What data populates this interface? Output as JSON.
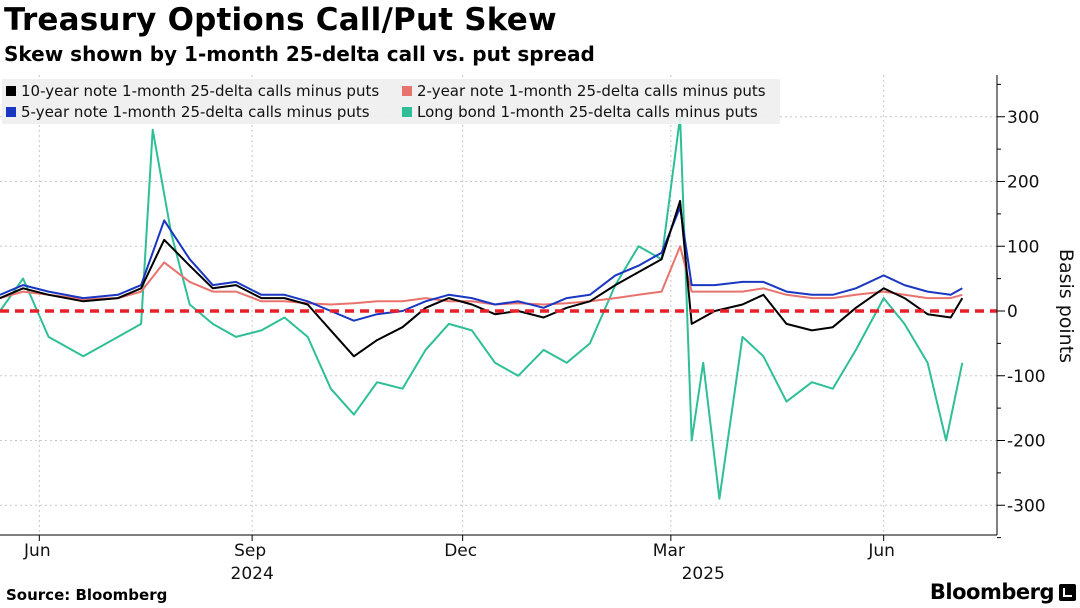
{
  "header": {
    "title": "Treasury Options Call/Put Skew",
    "subtitle": "Skew shown by 1-month 25-delta call vs. put spread"
  },
  "footer": {
    "source": "Source: Bloomberg",
    "brand": "Bloomberg"
  },
  "chart_data": {
    "type": "line",
    "ylabel": "Basis points",
    "ylim": [
      -350,
      370
    ],
    "yticks": [
      300,
      200,
      100,
      0,
      -100,
      -200,
      -300
    ],
    "ytick_labels": [
      "300",
      "200",
      "100",
      "0",
      "-100",
      "-200",
      "-300"
    ],
    "xlim": [
      "2024-05-15",
      "2025-07-20"
    ],
    "xticks": [
      {
        "label": "Jun",
        "date": "2024-06-01"
      },
      {
        "label": "Sep",
        "date": "2024-09-01"
      },
      {
        "label": "Dec",
        "date": "2024-12-01"
      },
      {
        "label": "Mar",
        "date": "2025-03-01"
      },
      {
        "label": "Jun",
        "date": "2025-06-01"
      }
    ],
    "year_labels": [
      {
        "label": "2024",
        "date": "2024-09-01"
      },
      {
        "label": "2025",
        "date": "2025-03-15"
      }
    ],
    "grid": true,
    "legend_position": "top-left",
    "reference_line": {
      "y": 0,
      "color": "#e8202a",
      "style": "dashed"
    },
    "series": [
      {
        "name": "10-year note 1-month 25-delta calls minus puts",
        "color": "#000000",
        "points": [
          [
            "2024-05-15",
            20
          ],
          [
            "2024-05-25",
            35
          ],
          [
            "2024-06-05",
            25
          ],
          [
            "2024-06-20",
            15
          ],
          [
            "2024-07-05",
            20
          ],
          [
            "2024-07-15",
            35
          ],
          [
            "2024-07-25",
            110
          ],
          [
            "2024-08-05",
            70
          ],
          [
            "2024-08-15",
            35
          ],
          [
            "2024-08-25",
            40
          ],
          [
            "2024-09-05",
            20
          ],
          [
            "2024-09-15",
            20
          ],
          [
            "2024-09-25",
            10
          ],
          [
            "2024-10-05",
            -30
          ],
          [
            "2024-10-15",
            -70
          ],
          [
            "2024-10-25",
            -45
          ],
          [
            "2024-11-05",
            -25
          ],
          [
            "2024-11-15",
            5
          ],
          [
            "2024-11-25",
            20
          ],
          [
            "2024-12-05",
            10
          ],
          [
            "2024-12-15",
            -5
          ],
          [
            "2024-12-25",
            0
          ],
          [
            "2025-01-05",
            -10
          ],
          [
            "2025-01-15",
            5
          ],
          [
            "2025-01-25",
            15
          ],
          [
            "2025-02-05",
            40
          ],
          [
            "2025-02-15",
            60
          ],
          [
            "2025-02-25",
            80
          ],
          [
            "2025-03-05",
            170
          ],
          [
            "2025-03-10",
            -20
          ],
          [
            "2025-03-20",
            0
          ],
          [
            "2025-04-01",
            10
          ],
          [
            "2025-04-10",
            25
          ],
          [
            "2025-04-20",
            -20
          ],
          [
            "2025-05-01",
            -30
          ],
          [
            "2025-05-10",
            -25
          ],
          [
            "2025-05-20",
            5
          ],
          [
            "2025-06-01",
            35
          ],
          [
            "2025-06-10",
            20
          ],
          [
            "2025-06-20",
            -5
          ],
          [
            "2025-06-30",
            -10
          ],
          [
            "2025-07-05",
            20
          ]
        ]
      },
      {
        "name": "2-year note 1-month 25-delta calls minus puts",
        "color": "#e8736e",
        "points": [
          [
            "2024-05-15",
            20
          ],
          [
            "2024-05-25",
            30
          ],
          [
            "2024-06-05",
            25
          ],
          [
            "2024-06-20",
            18
          ],
          [
            "2024-07-05",
            20
          ],
          [
            "2024-07-15",
            30
          ],
          [
            "2024-07-25",
            75
          ],
          [
            "2024-08-05",
            45
          ],
          [
            "2024-08-15",
            30
          ],
          [
            "2024-08-25",
            30
          ],
          [
            "2024-09-05",
            15
          ],
          [
            "2024-09-15",
            15
          ],
          [
            "2024-09-25",
            12
          ],
          [
            "2024-10-05",
            10
          ],
          [
            "2024-10-15",
            12
          ],
          [
            "2024-10-25",
            15
          ],
          [
            "2024-11-05",
            15
          ],
          [
            "2024-11-15",
            20
          ],
          [
            "2024-11-25",
            15
          ],
          [
            "2024-12-05",
            15
          ],
          [
            "2024-12-15",
            10
          ],
          [
            "2024-12-25",
            12
          ],
          [
            "2025-01-05",
            10
          ],
          [
            "2025-01-15",
            12
          ],
          [
            "2025-01-25",
            15
          ],
          [
            "2025-02-05",
            20
          ],
          [
            "2025-02-15",
            25
          ],
          [
            "2025-02-25",
            30
          ],
          [
            "2025-03-05",
            100
          ],
          [
            "2025-03-10",
            30
          ],
          [
            "2025-03-20",
            30
          ],
          [
            "2025-04-01",
            30
          ],
          [
            "2025-04-10",
            35
          ],
          [
            "2025-04-20",
            25
          ],
          [
            "2025-05-01",
            20
          ],
          [
            "2025-05-10",
            20
          ],
          [
            "2025-05-20",
            25
          ],
          [
            "2025-06-01",
            30
          ],
          [
            "2025-06-10",
            25
          ],
          [
            "2025-06-20",
            20
          ],
          [
            "2025-06-30",
            20
          ],
          [
            "2025-07-05",
            25
          ]
        ]
      },
      {
        "name": "5-year note 1-month 25-delta calls minus puts",
        "color": "#1a37c2",
        "points": [
          [
            "2024-05-15",
            25
          ],
          [
            "2024-05-25",
            40
          ],
          [
            "2024-06-05",
            30
          ],
          [
            "2024-06-20",
            20
          ],
          [
            "2024-07-05",
            25
          ],
          [
            "2024-07-15",
            40
          ],
          [
            "2024-07-25",
            140
          ],
          [
            "2024-08-05",
            80
          ],
          [
            "2024-08-15",
            40
          ],
          [
            "2024-08-25",
            45
          ],
          [
            "2024-09-05",
            25
          ],
          [
            "2024-09-15",
            25
          ],
          [
            "2024-09-25",
            15
          ],
          [
            "2024-10-05",
            0
          ],
          [
            "2024-10-15",
            -15
          ],
          [
            "2024-10-25",
            -5
          ],
          [
            "2024-11-05",
            0
          ],
          [
            "2024-11-15",
            15
          ],
          [
            "2024-11-25",
            25
          ],
          [
            "2024-12-05",
            20
          ],
          [
            "2024-12-15",
            10
          ],
          [
            "2024-12-25",
            15
          ],
          [
            "2025-01-05",
            5
          ],
          [
            "2025-01-15",
            20
          ],
          [
            "2025-01-25",
            25
          ],
          [
            "2025-02-05",
            55
          ],
          [
            "2025-02-15",
            70
          ],
          [
            "2025-02-25",
            90
          ],
          [
            "2025-03-05",
            160
          ],
          [
            "2025-03-10",
            40
          ],
          [
            "2025-03-20",
            40
          ],
          [
            "2025-04-01",
            45
          ],
          [
            "2025-04-10",
            45
          ],
          [
            "2025-04-20",
            30
          ],
          [
            "2025-05-01",
            25
          ],
          [
            "2025-05-10",
            25
          ],
          [
            "2025-05-20",
            35
          ],
          [
            "2025-06-01",
            55
          ],
          [
            "2025-06-10",
            40
          ],
          [
            "2025-06-20",
            30
          ],
          [
            "2025-06-30",
            25
          ],
          [
            "2025-07-05",
            35
          ]
        ]
      },
      {
        "name": "Long bond 1-month 25-delta calls minus puts",
        "color": "#2fbf97",
        "points": [
          [
            "2024-05-15",
            0
          ],
          [
            "2024-05-25",
            50
          ],
          [
            "2024-06-05",
            -40
          ],
          [
            "2024-06-20",
            -70
          ],
          [
            "2024-07-05",
            -40
          ],
          [
            "2024-07-15",
            -20
          ],
          [
            "2024-07-20",
            280
          ],
          [
            "2024-07-28",
            120
          ],
          [
            "2024-08-05",
            10
          ],
          [
            "2024-08-15",
            -20
          ],
          [
            "2024-08-25",
            -40
          ],
          [
            "2024-09-05",
            -30
          ],
          [
            "2024-09-15",
            -10
          ],
          [
            "2024-09-25",
            -40
          ],
          [
            "2024-10-05",
            -120
          ],
          [
            "2024-10-15",
            -160
          ],
          [
            "2024-10-25",
            -110
          ],
          [
            "2024-11-05",
            -120
          ],
          [
            "2024-11-15",
            -60
          ],
          [
            "2024-11-25",
            -20
          ],
          [
            "2024-12-05",
            -30
          ],
          [
            "2024-12-15",
            -80
          ],
          [
            "2024-12-25",
            -100
          ],
          [
            "2025-01-05",
            -60
          ],
          [
            "2025-01-15",
            -80
          ],
          [
            "2025-01-25",
            -50
          ],
          [
            "2025-02-05",
            40
          ],
          [
            "2025-02-15",
            100
          ],
          [
            "2025-02-25",
            80
          ],
          [
            "2025-03-05",
            300
          ],
          [
            "2025-03-10",
            -200
          ],
          [
            "2025-03-15",
            -80
          ],
          [
            "2025-03-22",
            -290
          ],
          [
            "2025-04-01",
            -40
          ],
          [
            "2025-04-10",
            -70
          ],
          [
            "2025-04-20",
            -140
          ],
          [
            "2025-05-01",
            -110
          ],
          [
            "2025-05-10",
            -120
          ],
          [
            "2025-05-20",
            -60
          ],
          [
            "2025-06-01",
            20
          ],
          [
            "2025-06-10",
            -20
          ],
          [
            "2025-06-20",
            -80
          ],
          [
            "2025-06-28",
            -200
          ],
          [
            "2025-07-05",
            -80
          ]
        ]
      }
    ]
  }
}
